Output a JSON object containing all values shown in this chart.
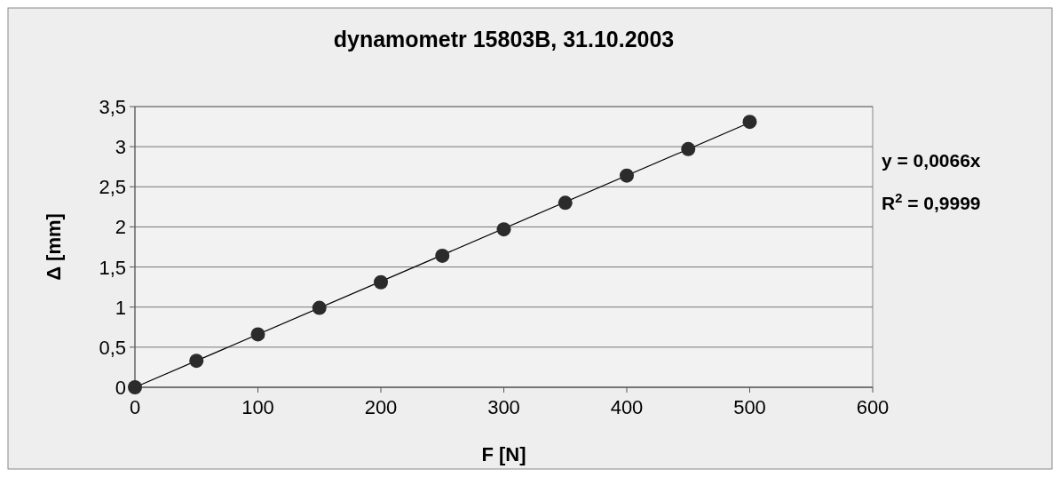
{
  "chart_data": {
    "type": "scatter",
    "title": "dynamometr 15803B, 31.10.2003",
    "xlabel": "F [N]",
    "ylabel": "Δ [mm]",
    "x": [
      0,
      50,
      100,
      150,
      200,
      250,
      300,
      350,
      400,
      450,
      500
    ],
    "series": [
      {
        "color": "#2b2b2b",
        "values": [
          0,
          0.33,
          0.66,
          0.99,
          1.31,
          1.64,
          1.97,
          2.3,
          2.64,
          2.97,
          3.31
        ],
        "marker": "circle"
      },
      {
        "type": "line",
        "color": "#000000",
        "x": [
          0,
          500
        ],
        "values": [
          0,
          3.3
        ],
        "marker": "none",
        "line_style": "solid"
      }
    ],
    "xlim": [
      0,
      600
    ],
    "xticks": [
      0,
      100,
      200,
      300,
      400,
      500,
      600
    ],
    "ylim": [
      0,
      3.5
    ],
    "yticks": [
      0,
      {
        "value": 0.5,
        "label": "0,5"
      },
      1,
      {
        "value": 1.5,
        "label": "1,5"
      },
      2,
      {
        "value": 2.5,
        "label": "2,5"
      },
      3,
      {
        "value": 3.5,
        "label": "3,5"
      }
    ],
    "grid": "y",
    "annotations": [
      "y = 0,0066x",
      "R$^{2}$ = 0,9999"
    ]
  }
}
